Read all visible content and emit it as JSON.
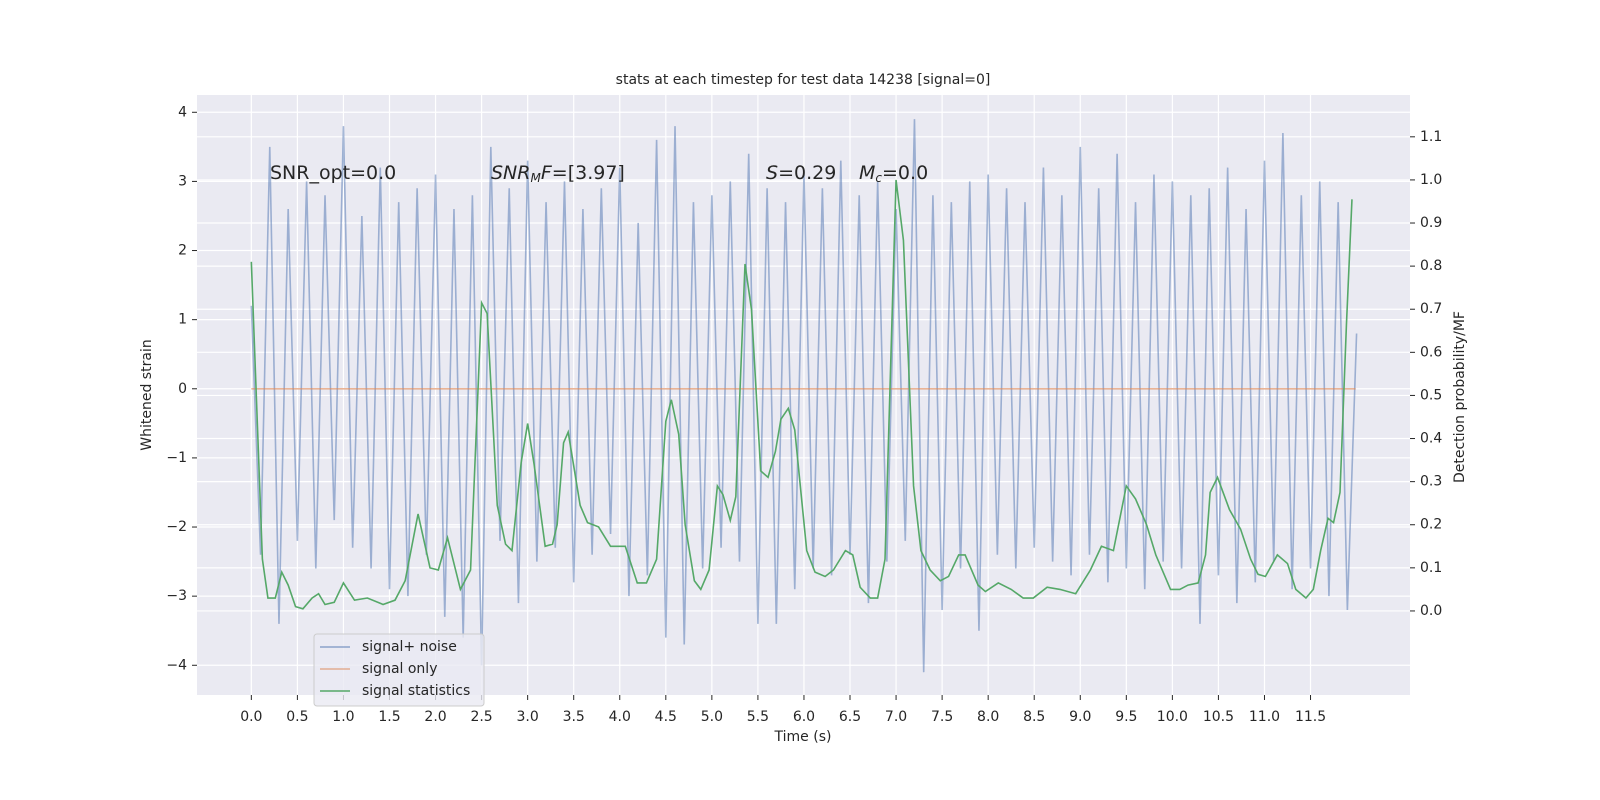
{
  "chart_data": {
    "type": "line",
    "title": "stats at each timestep for test data 14238 [signal=0]",
    "x_label": "Time (s)",
    "y_label": "Whitened strain",
    "y2_label": "Detection probability/MF",
    "annotations": [
      [
        "SNR_opt=0.0"
      ],
      [
        "SNR",
        "M",
        "F",
        "=[3.97]"
      ],
      [
        "S",
        "=0.29"
      ],
      [
        "M",
        "c",
        "=0.0"
      ]
    ],
    "xlim": [
      -0.59,
      12.58
    ],
    "ylim": [
      -4.43,
      4.25
    ],
    "y2lim": [
      -0.195,
      1.197
    ],
    "xticks": [
      {
        "value": 0,
        "label": "0.0"
      },
      0.5,
      {
        "value": 1,
        "label": "1.0"
      },
      1.5,
      {
        "value": 2,
        "label": "2.0"
      },
      2.5,
      {
        "value": 3,
        "label": "3.0"
      },
      3.5,
      {
        "value": 4,
        "label": "4.0"
      },
      4.5,
      {
        "value": 5,
        "label": "5.0"
      },
      5.5,
      {
        "value": 6,
        "label": "6.0"
      },
      6.5,
      {
        "value": 7,
        "label": "7.0"
      },
      7.5,
      {
        "value": 8,
        "label": "8.0"
      },
      8.5,
      {
        "value": 9,
        "label": "9.0"
      },
      9.5,
      {
        "value": 10,
        "label": "10.0"
      },
      10.5,
      {
        "value": 11,
        "label": "11.0"
      },
      11.5
    ],
    "yticks": [
      4,
      3,
      2,
      1,
      0,
      {
        "value": -1,
        "label": "−1"
      },
      {
        "value": -2,
        "label": "−2"
      },
      {
        "value": -3,
        "label": "−3"
      },
      {
        "value": -4,
        "label": "−4"
      }
    ],
    "y2ticks": [
      {
        "value": 0,
        "label": "0.0"
      },
      0.1,
      0.2,
      0.3,
      0.4,
      0.5,
      0.6,
      0.7,
      0.8,
      0.9,
      {
        "value": 1,
        "label": "1.0"
      },
      1.1
    ],
    "grid": true,
    "legend": "lower left",
    "series": [
      {
        "name": "signal+ noise",
        "color": "#4c72b0",
        "x": [
          0.0,
          0.1,
          0.2,
          0.3,
          0.4,
          0.5,
          0.6,
          0.7,
          0.8,
          0.9,
          1.0,
          1.1,
          1.2,
          1.3,
          1.4,
          1.5,
          1.6,
          1.7,
          1.8,
          1.9,
          2.0,
          2.1,
          2.2,
          2.3,
          2.4,
          2.5,
          2.6,
          2.7,
          2.8,
          2.9,
          3.0,
          3.1,
          3.2,
          3.3,
          3.4,
          3.5,
          3.6,
          3.7,
          3.8,
          3.9,
          4.0,
          4.1,
          4.2,
          4.3,
          4.4,
          4.5,
          4.6,
          4.7,
          4.8,
          4.9,
          5.0,
          5.1,
          5.2,
          5.3,
          5.4,
          5.5,
          5.6,
          5.7,
          5.8,
          5.9,
          6.0,
          6.1,
          6.2,
          6.3,
          6.4,
          6.5,
          6.6,
          6.7,
          6.8,
          6.9,
          7.0,
          7.1,
          7.2,
          7.3,
          7.4,
          7.5,
          7.6,
          7.7,
          7.8,
          7.9,
          8.0,
          8.1,
          8.2,
          8.3,
          8.4,
          8.5,
          8.6,
          8.7,
          8.8,
          8.9,
          9.0,
          9.1,
          9.2,
          9.3,
          9.4,
          9.5,
          9.6,
          9.7,
          9.8,
          9.9,
          10.0,
          10.1,
          10.2,
          10.3,
          10.4,
          10.5,
          10.6,
          10.7,
          10.8,
          10.9,
          11.0,
          11.1,
          11.2,
          11.3,
          11.4,
          11.5,
          11.6,
          11.7,
          11.8,
          11.9,
          12.0
        ],
        "values": [
          1.2,
          -2.4,
          3.5,
          -3.4,
          2.6,
          -2.2,
          3.0,
          -2.6,
          2.8,
          -1.9,
          3.8,
          -2.3,
          2.5,
          -2.6,
          3.2,
          -2.9,
          2.7,
          -3.0,
          2.9,
          -2.4,
          3.1,
          -3.3,
          2.6,
          -3.6,
          2.8,
          -4.0,
          3.5,
          -2.2,
          2.9,
          -3.1,
          3.3,
          -2.5,
          2.7,
          -2.3,
          3.0,
          -2.8,
          2.6,
          -2.4,
          2.9,
          -2.1,
          3.2,
          -3.0,
          2.4,
          -2.7,
          3.6,
          -3.6,
          3.8,
          -3.7,
          2.7,
          -2.6,
          2.8,
          -2.3,
          3.0,
          -2.5,
          3.4,
          -3.4,
          2.9,
          -3.4,
          2.7,
          -2.9,
          3.1,
          -2.6,
          2.9,
          -2.7,
          3.3,
          -2.4,
          2.8,
          -3.1,
          3.0,
          -2.5,
          2.6,
          -2.2,
          3.9,
          -4.1,
          2.8,
          -3.2,
          2.7,
          -2.6,
          3.0,
          -3.5,
          3.1,
          -2.4,
          2.9,
          -2.6,
          2.7,
          -2.3,
          3.2,
          -2.5,
          2.8,
          -2.7,
          3.5,
          -2.4,
          2.9,
          -2.8,
          3.4,
          -2.6,
          2.7,
          -2.9,
          3.1,
          -2.5,
          3.0,
          -2.6,
          2.8,
          -3.4,
          2.9,
          -2.7,
          3.2,
          -3.1,
          2.6,
          -2.8,
          3.3,
          -2.5,
          3.7,
          -2.9,
          2.8,
          -2.6,
          3.0,
          -3.0,
          2.7,
          -3.2,
          0.8
        ]
      },
      {
        "name": "signal only",
        "color": "#dd8452",
        "x": [
          0.0,
          11.99
        ],
        "values": [
          0,
          0
        ]
      },
      {
        "name": "signal statistics",
        "color": "#55a868",
        "axis": "y2",
        "x": [
          0.0,
          0.12,
          0.18,
          0.26,
          0.33,
          0.4,
          0.48,
          0.56,
          0.66,
          0.73,
          0.8,
          0.9,
          1.0,
          1.12,
          1.26,
          1.43,
          1.56,
          1.67,
          1.81,
          1.94,
          2.03,
          2.13,
          2.27,
          2.38,
          2.5,
          2.56,
          2.67,
          2.76,
          2.83,
          2.93,
          3.0,
          3.07,
          3.19,
          3.27,
          3.32,
          3.39,
          3.44,
          3.57,
          3.65,
          3.77,
          3.9,
          4.06,
          4.19,
          4.29,
          4.4,
          4.5,
          4.56,
          4.64,
          4.71,
          4.81,
          4.88,
          4.97,
          5.06,
          5.12,
          5.2,
          5.26,
          5.36,
          5.43,
          5.53,
          5.61,
          5.69,
          5.75,
          5.83,
          5.9,
          6.03,
          6.12,
          6.23,
          6.32,
          6.45,
          6.53,
          6.61,
          6.72,
          6.8,
          6.88,
          7.0,
          7.08,
          7.19,
          7.27,
          7.37,
          7.48,
          7.57,
          7.68,
          7.75,
          7.89,
          7.97,
          8.11,
          8.25,
          8.38,
          8.49,
          8.64,
          8.78,
          8.95,
          9.11,
          9.23,
          9.36,
          9.5,
          9.6,
          9.72,
          9.82,
          9.98,
          10.08,
          10.17,
          10.28,
          10.36,
          10.41,
          10.49,
          10.62,
          10.74,
          10.85,
          10.93,
          11.01,
          11.14,
          11.25,
          11.34,
          11.45,
          11.53,
          11.61,
          11.69,
          11.75,
          11.82,
          11.89,
          11.95
        ],
        "values": [
          0.81,
          0.12,
          0.03,
          0.03,
          0.09,
          0.06,
          0.01,
          0.005,
          0.03,
          0.04,
          0.015,
          0.02,
          0.065,
          0.025,
          0.03,
          0.015,
          0.025,
          0.07,
          0.225,
          0.1,
          0.095,
          0.17,
          0.05,
          0.095,
          0.715,
          0.69,
          0.245,
          0.155,
          0.14,
          0.345,
          0.435,
          0.34,
          0.15,
          0.155,
          0.2,
          0.39,
          0.415,
          0.245,
          0.205,
          0.195,
          0.15,
          0.15,
          0.065,
          0.065,
          0.12,
          0.44,
          0.49,
          0.41,
          0.2,
          0.07,
          0.05,
          0.095,
          0.29,
          0.27,
          0.21,
          0.265,
          0.805,
          0.7,
          0.325,
          0.31,
          0.37,
          0.445,
          0.47,
          0.42,
          0.14,
          0.09,
          0.08,
          0.095,
          0.14,
          0.13,
          0.055,
          0.03,
          0.03,
          0.12,
          1.0,
          0.86,
          0.29,
          0.14,
          0.095,
          0.07,
          0.08,
          0.13,
          0.13,
          0.06,
          0.045,
          0.065,
          0.05,
          0.03,
          0.03,
          0.055,
          0.05,
          0.04,
          0.095,
          0.15,
          0.14,
          0.29,
          0.26,
          0.2,
          0.13,
          0.05,
          0.05,
          0.06,
          0.065,
          0.13,
          0.275,
          0.31,
          0.235,
          0.19,
          0.12,
          0.085,
          0.08,
          0.13,
          0.11,
          0.05,
          0.03,
          0.05,
          0.14,
          0.215,
          0.205,
          0.275,
          0.665,
          0.955
        ]
      }
    ]
  }
}
